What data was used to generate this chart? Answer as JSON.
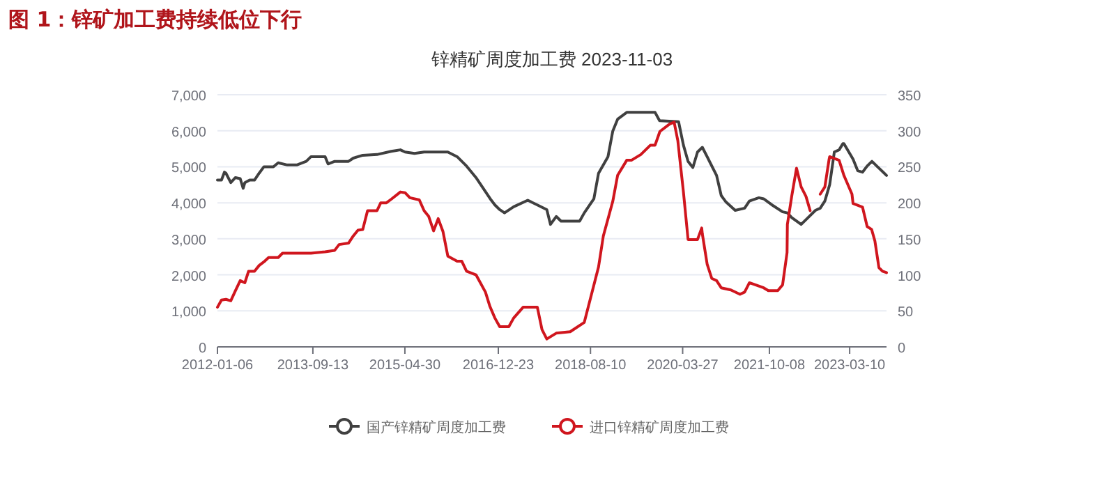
{
  "chart_data": {
    "type": "line",
    "title": "图 1：锌矿加工费持续低位下行",
    "subtitle": "锌精矿周度加工费 2023-11-03",
    "xlim": [
      "2012-01-06",
      "2023-11-03"
    ],
    "xticks": [
      "2012-01-06",
      "2013-09-13",
      "2015-04-30",
      "2016-12-23",
      "2018-08-10",
      "2020-03-27",
      "2021-10-08",
      "2023-03-10"
    ],
    "ylim": [
      0,
      7000
    ],
    "yticks": [
      {
        "value": 0,
        "label": "0"
      },
      {
        "value": 1000,
        "label": "1,000"
      },
      {
        "value": 2000,
        "label": "2,000"
      },
      {
        "value": 3000,
        "label": "3,000"
      },
      {
        "value": 4000,
        "label": "4,000"
      },
      {
        "value": 5000,
        "label": "5,000"
      },
      {
        "value": 6000,
        "label": "6,000"
      },
      {
        "value": 7000,
        "label": "7,000"
      }
    ],
    "y2lim": [
      0,
      350
    ],
    "y2ticks": [
      0,
      50,
      100,
      150,
      200,
      250,
      300,
      350
    ],
    "grid": "y",
    "legend": "bottom",
    "series": [
      {
        "name": "国产锌精矿周度加工费",
        "color": "#404040",
        "x": [
          "2012-01-06",
          "2012-02-01",
          "2012-02-20",
          "2012-03",
          "2012-04",
          "2012-05",
          "2012-06-01",
          "2012-06-20",
          "2012-07",
          "2012-08",
          "2012-09",
          "2012-10",
          "2012-11",
          "2013-01",
          "2013-02",
          "2013-04",
          "2013-06",
          "2013-08",
          "2013-09",
          "2013-12-01",
          "2013-12-20",
          "2014-02",
          "2014-05",
          "2014-06",
          "2014-08",
          "2014-11",
          "2015-02",
          "2015-04",
          "2015-05",
          "2015-07",
          "2015-09",
          "2016-02",
          "2016-04",
          "2016-06",
          "2016-08",
          "2016-10",
          "2016-11",
          "2016-12",
          "2017-01",
          "2017-02",
          "2017-04",
          "2017-07",
          "2017-09",
          "2017-11-01",
          "2017-11-25",
          "2018-01",
          "2018-02",
          "2018-06",
          "2018-07",
          "2018-09",
          "2018-10",
          "2018-12",
          "2019-01",
          "2019-02",
          "2019-04",
          "2019-10-01",
          "2019-10-30",
          "2020-03",
          "2020-04",
          "2020-05",
          "2020-06",
          "2020-07",
          "2020-08",
          "2020-09",
          "2020-11",
          "2020-12",
          "2021-01",
          "2021-03",
          "2021-05",
          "2021-06",
          "2021-08",
          "2021-09",
          "2021-11",
          "2022-01",
          "2022-02",
          "2022-03",
          "2022-05",
          "2022-06",
          "2022-08",
          "2022-09",
          "2022-10",
          "2022-11",
          "2022-12",
          "2023-01-01",
          "2023-01-25",
          "2023-02",
          "2023-04",
          "2023-05",
          "2023-06",
          "2023-07",
          "2023-08",
          "2023-09",
          "2023-11-03"
        ],
        "values": [
          4630,
          4630,
          4850,
          4820,
          4560,
          4700,
          4670,
          4400,
          4560,
          4630,
          4630,
          4820,
          5000,
          5000,
          5110,
          5050,
          5050,
          5150,
          5280,
          5280,
          5080,
          5150,
          5150,
          5240,
          5320,
          5340,
          5430,
          5470,
          5410,
          5370,
          5410,
          5410,
          5280,
          5020,
          4700,
          4310,
          4110,
          3940,
          3810,
          3720,
          3890,
          4070,
          3940,
          3810,
          3400,
          3620,
          3490,
          3490,
          3720,
          4110,
          4820,
          5280,
          5990,
          6320,
          6510,
          6510,
          6280,
          6250,
          5600,
          5150,
          4980,
          5410,
          5540,
          5280,
          4760,
          4200,
          4020,
          3790,
          3850,
          4050,
          4140,
          4110,
          3920,
          3750,
          3720,
          3590,
          3400,
          3530,
          3790,
          3850,
          4050,
          4500,
          5410,
          5470,
          5640,
          5640,
          5210,
          4890,
          4850,
          5020,
          5150,
          5020,
          4760
        ]
      },
      {
        "name": "进口锌精矿周度加工费",
        "color": "#d0161e",
        "axis": "y2",
        "x": [
          "2012-01-06",
          "2012-02",
          "2012-03",
          "2012-04",
          "2012-05",
          "2012-06",
          "2012-07-01",
          "2012-07-25",
          "2012-09",
          "2012-10",
          "2012-11",
          "2012-12",
          "2013-02",
          "2013-03",
          "2013-09",
          "2013-12",
          "2014-02",
          "2014-03",
          "2014-05",
          "2014-06",
          "2014-07",
          "2014-08",
          "2014-09",
          "2014-11-01",
          "2014-11-25",
          "2015-01",
          "2015-02",
          "2015-04",
          "2015-05",
          "2015-06",
          "2015-08",
          "2015-09",
          "2015-10",
          "2015-11",
          "2015-12",
          "2016-01",
          "2016-02",
          "2016-04",
          "2016-05",
          "2016-06",
          "2016-08",
          "2016-10-01",
          "2016-10-30",
          "2016-12",
          "2017-01",
          "2017-03",
          "2017-04",
          "2017-06",
          "2017-09",
          "2017-10",
          "2017-11",
          "2018-01",
          "2018-04",
          "2018-07",
          "2018-08",
          "2018-10",
          "2018-11",
          "2019-01",
          "2019-02",
          "2019-04",
          "2019-05",
          "2019-07",
          "2019-09",
          "2019-10",
          "2019-11",
          "2020-01",
          "2020-02-01",
          "2020-02-25",
          "2020-04",
          "2020-05",
          "2020-07-01",
          "2020-07-28",
          "2020-08",
          "2020-09",
          "2020-10",
          "2020-11",
          "2020-12",
          "2021-02",
          "2021-04",
          "2021-05",
          "2021-06",
          "2021-09",
          "2021-10",
          "2021-12",
          "2022-01-01",
          "2022-01-30",
          "2022-02",
          "2022-03",
          "2022-04",
          "2022-05",
          "2022-06-01",
          "2022-06-28",
          "2022-08",
          "2022-09",
          "2022-10-01",
          "2022-10-28",
          "2022-11",
          "2023-01",
          "2023-02",
          "2023-03-25",
          "2023-04",
          "2023-06",
          "2023-07-01",
          "2023-07-30",
          "2023-08-20",
          "2023-09-15",
          "2023-10-08",
          "2023-11-03"
        ],
        "values": [
          55,
          65,
          66,
          64,
          78,
          92,
          89,
          105,
          105,
          113,
          118,
          124,
          124,
          130,
          130,
          132,
          134,
          142,
          144,
          154,
          162,
          163,
          189,
          189,
          200,
          200,
          205,
          215,
          214,
          207,
          204,
          189,
          181,
          161,
          178,
          160,
          126,
          119,
          119,
          105,
          100,
          76,
          56,
          40,
          28,
          28,
          40,
          55,
          55,
          24,
          11,
          19,
          21,
          34,
          60,
          111,
          154,
          202,
          238,
          259,
          259,
          267,
          280,
          280,
          299,
          309,
          312,
          286,
          215,
          149,
          149,
          165,
          157,
          115,
          95,
          92,
          82,
          79,
          73,
          76,
          89,
          82,
          78,
          78,
          86,
          131,
          170,
          209,
          248,
          222,
          209,
          189,
          null,
          212,
          222,
          260,
          264,
          259,
          238,
          212,
          199,
          194,
          167,
          163,
          147,
          110,
          105,
          103
        ]
      }
    ]
  }
}
